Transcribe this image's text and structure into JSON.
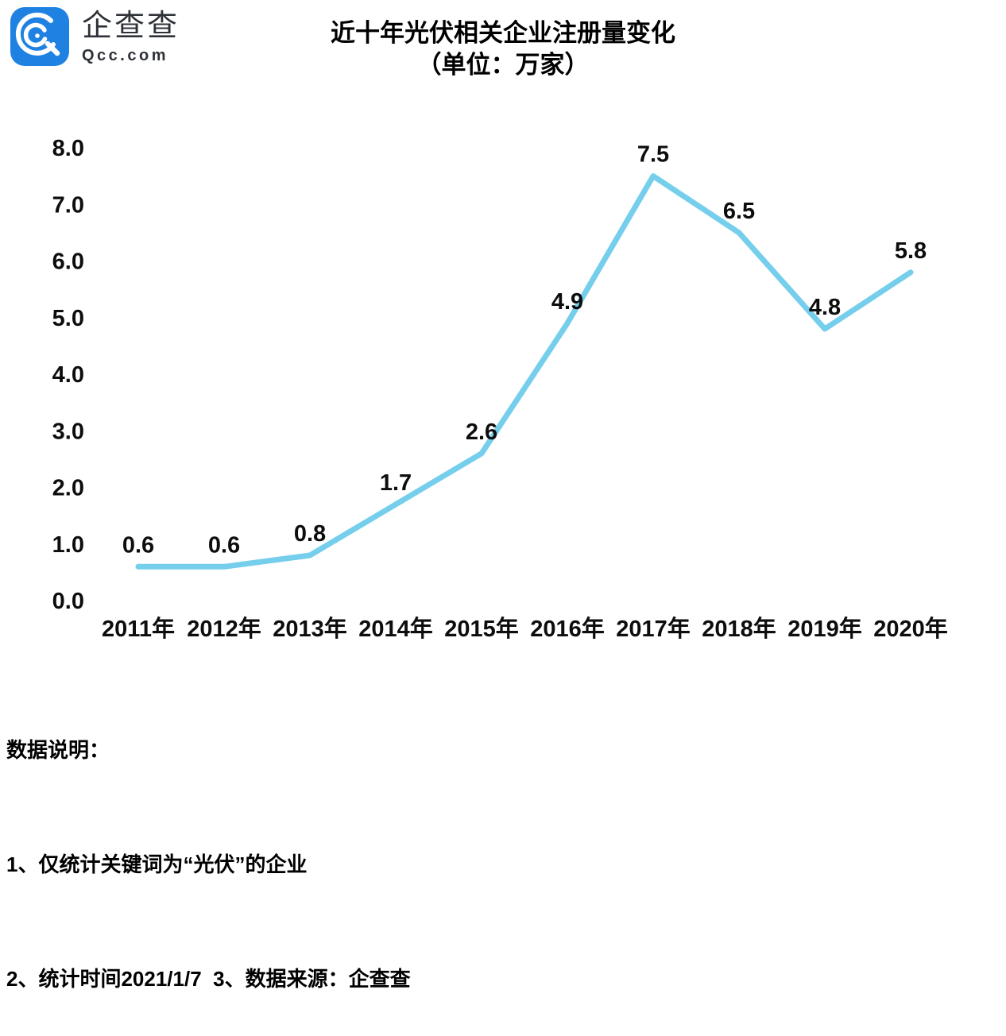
{
  "brand": {
    "name": "企查查",
    "domain": "Qcc.com",
    "logo_blue": "#1f82e2",
    "logo_icon": "qcc-magnifier-icon"
  },
  "title": {
    "line1": "近十年光伏相关企业注册量变化",
    "line2": "（单位：万家）"
  },
  "chart_data": {
    "type": "line",
    "title": "近十年光伏相关企业注册量变化",
    "subtitle": "（单位：万家）",
    "unit": "万家",
    "categories": [
      "2011年",
      "2012年",
      "2013年",
      "2014年",
      "2015年",
      "2016年",
      "2017年",
      "2018年",
      "2019年",
      "2020年"
    ],
    "values": [
      0.6,
      0.6,
      0.8,
      1.7,
      2.6,
      4.9,
      7.5,
      6.5,
      4.8,
      5.8
    ],
    "ytick_labels": [
      "0.0",
      "1.0",
      "2.0",
      "3.0",
      "4.0",
      "5.0",
      "6.0",
      "7.0",
      "8.0"
    ],
    "ylim": [
      0,
      8
    ],
    "ytick_step": 1,
    "grid": false,
    "legend": "none",
    "line_color": "#75ceeb",
    "label_color": "#0d0d0d"
  },
  "footer": {
    "heading": "数据说明：",
    "notes": [
      "1、仅统计关键词为“光伏”的企业",
      "2、统计时间2021/1/7  3、数据来源：企查查"
    ]
  }
}
